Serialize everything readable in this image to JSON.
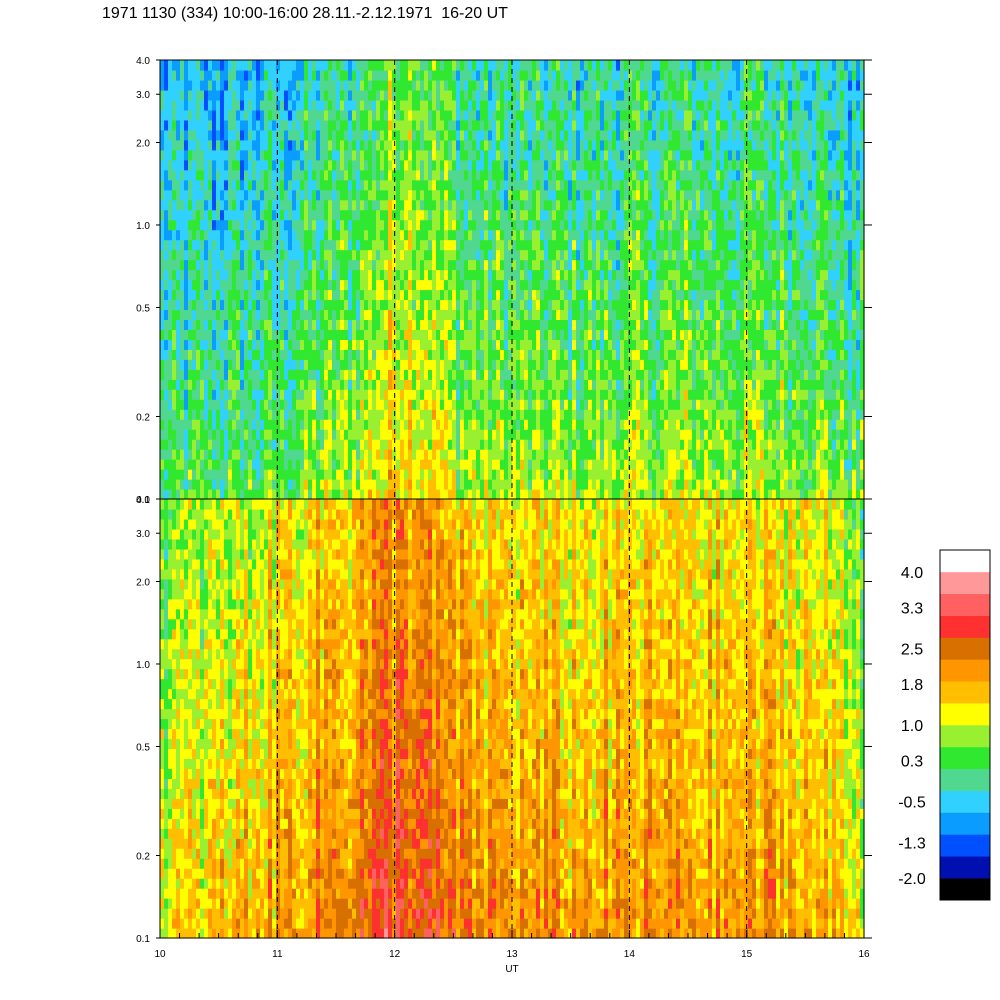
{
  "chart_data": {
    "type": "heatmap",
    "title": "1971 1130 (334) 10:00-16:00 28.11.-2.12.1971  16-20 UT",
    "xlabel": "UT",
    "x_ticks": [
      "10",
      "11",
      "12",
      "13",
      "14",
      "15",
      "16"
    ],
    "xlim": [
      10,
      16
    ],
    "y_scale": "log",
    "panels": [
      {
        "name": "upper",
        "ylim": [
          0.1,
          4.0
        ],
        "y_ticks": [
          "0.1",
          "0.2",
          "0.5",
          "1.0",
          "2.0",
          "3.0",
          "4.0"
        ],
        "dominant_level_low_freq": 0.6,
        "dominant_level_high_freq": -0.3,
        "profile_by_hour": [
          {
            "x": 10.0,
            "level_low": 0.3
          },
          {
            "x": 11.0,
            "level_low": 0.5
          },
          {
            "x": 11.7,
            "level_low": 1.0
          },
          {
            "x": 12.1,
            "level_low": 1.7
          },
          {
            "x": 12.6,
            "level_low": 0.9
          },
          {
            "x": 13.5,
            "level_low": 0.8
          },
          {
            "x": 14.5,
            "level_low": 0.9
          },
          {
            "x": 15.5,
            "level_low": 0.9
          },
          {
            "x": 16.0,
            "level_low": 0.4
          }
        ]
      },
      {
        "name": "lower",
        "ylim": [
          0.1,
          4.0
        ],
        "y_ticks": [
          "0.1",
          "0.2",
          "0.5",
          "1.0",
          "2.0",
          "3.0",
          "4.0"
        ],
        "dominant_level_low_freq": 1.9,
        "dominant_level_high_freq": 1.2,
        "profile_by_hour": [
          {
            "x": 10.0,
            "level_low": 1.2
          },
          {
            "x": 10.5,
            "level_low": 1.5
          },
          {
            "x": 11.0,
            "level_low": 1.9
          },
          {
            "x": 11.6,
            "level_low": 2.3
          },
          {
            "x": 12.1,
            "level_low": 2.7
          },
          {
            "x": 12.6,
            "level_low": 2.1
          },
          {
            "x": 13.5,
            "level_low": 1.9
          },
          {
            "x": 14.5,
            "level_low": 2.0
          },
          {
            "x": 15.5,
            "level_low": 1.9
          },
          {
            "x": 16.0,
            "level_low": 1.3
          }
        ]
      }
    ],
    "colorbar": {
      "labels": [
        "4.0",
        "3.3",
        "2.5",
        "1.8",
        "1.0",
        "0.3",
        "-0.5",
        "-1.3",
        "-2.0"
      ],
      "min": -2.0,
      "max": 4.0,
      "colors": [
        "#000000",
        "#0010b0",
        "#0050ff",
        "#0a9cff",
        "#30d0ff",
        "#50d890",
        "#30e830",
        "#98f030",
        "#ffff00",
        "#ffbf00",
        "#ff9600",
        "#d87000",
        "#ff3030",
        "#ff6060",
        "#ff9898",
        "#ffffff"
      ]
    }
  }
}
